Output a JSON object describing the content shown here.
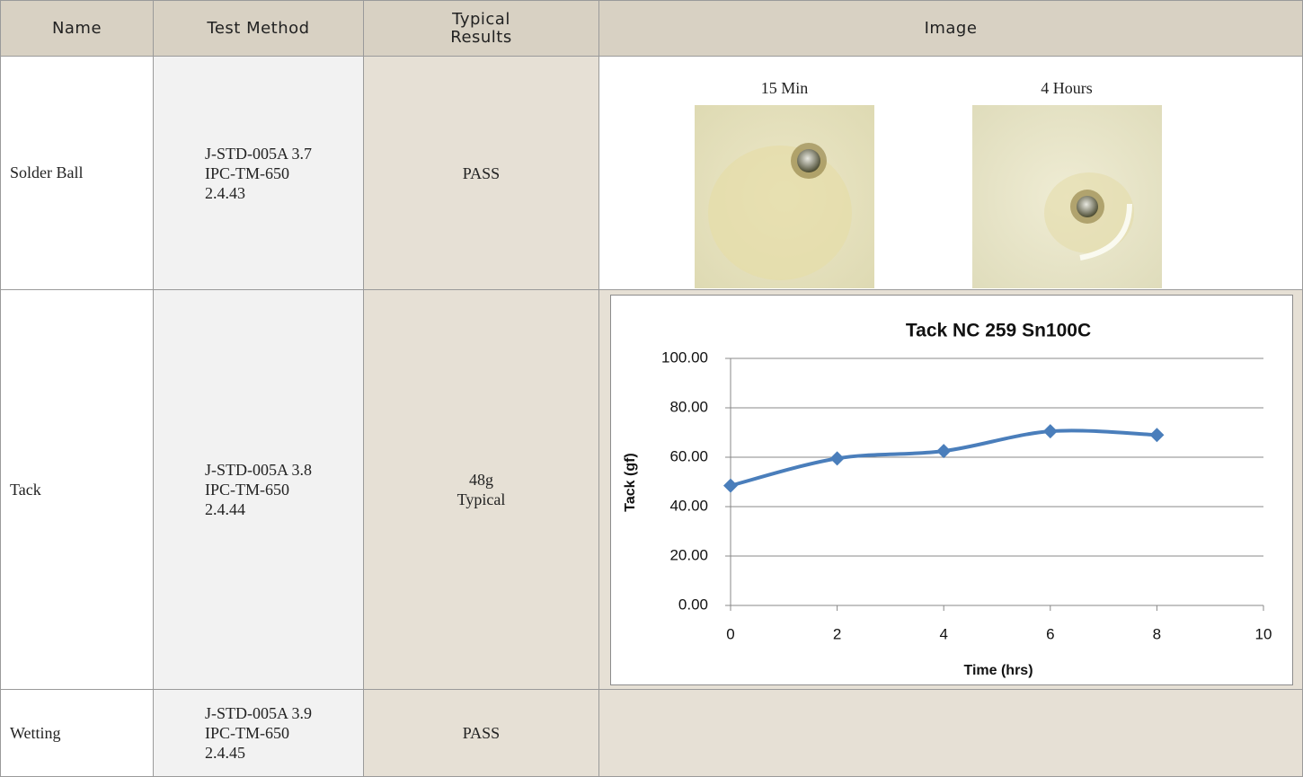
{
  "table": {
    "headers": [
      "Name",
      "Test Method",
      "Typical Results",
      "Image"
    ],
    "rows": [
      {
        "name": "Solder Ball",
        "method": [
          "J-STD-005A 3.7",
          "IPC-TM-650",
          "2.4.43"
        ],
        "result": [
          "PASS"
        ],
        "captions": [
          "15 Min",
          "4 Hours"
        ]
      },
      {
        "name": "Tack",
        "method": [
          "J-STD-005A 3.8",
          "IPC-TM-650",
          "2.4.44"
        ],
        "result": [
          "48g",
          "Typical"
        ]
      },
      {
        "name": "Wetting",
        "method": [
          "J-STD-005A 3.9",
          "IPC-TM-650",
          "2.4.45"
        ],
        "result": [
          "PASS"
        ]
      }
    ]
  },
  "chart_data": {
    "type": "line",
    "title": "Tack NC 259 Sn100C",
    "x": [
      0,
      2,
      4,
      6,
      8
    ],
    "series": [
      {
        "name": "Tack",
        "color": "#4a7ebb",
        "values": [
          48.5,
          59.5,
          62.5,
          70.5,
          69
        ]
      }
    ],
    "xlabel": "Time (hrs)",
    "ylabel": "Tack (gf)",
    "xlim": [
      0,
      10
    ],
    "xticks": [
      0,
      2,
      4,
      6,
      8,
      10
    ],
    "ylim": [
      0,
      100
    ],
    "yticks": [
      {
        "value": 0,
        "label": "0.00"
      },
      {
        "value": 20,
        "label": "20.00"
      },
      {
        "value": 40,
        "label": "40.00"
      },
      {
        "value": 60,
        "label": "60.00"
      },
      {
        "value": 80,
        "label": "80.00"
      },
      {
        "value": 100,
        "label": "100.00"
      }
    ],
    "grid": true
  }
}
